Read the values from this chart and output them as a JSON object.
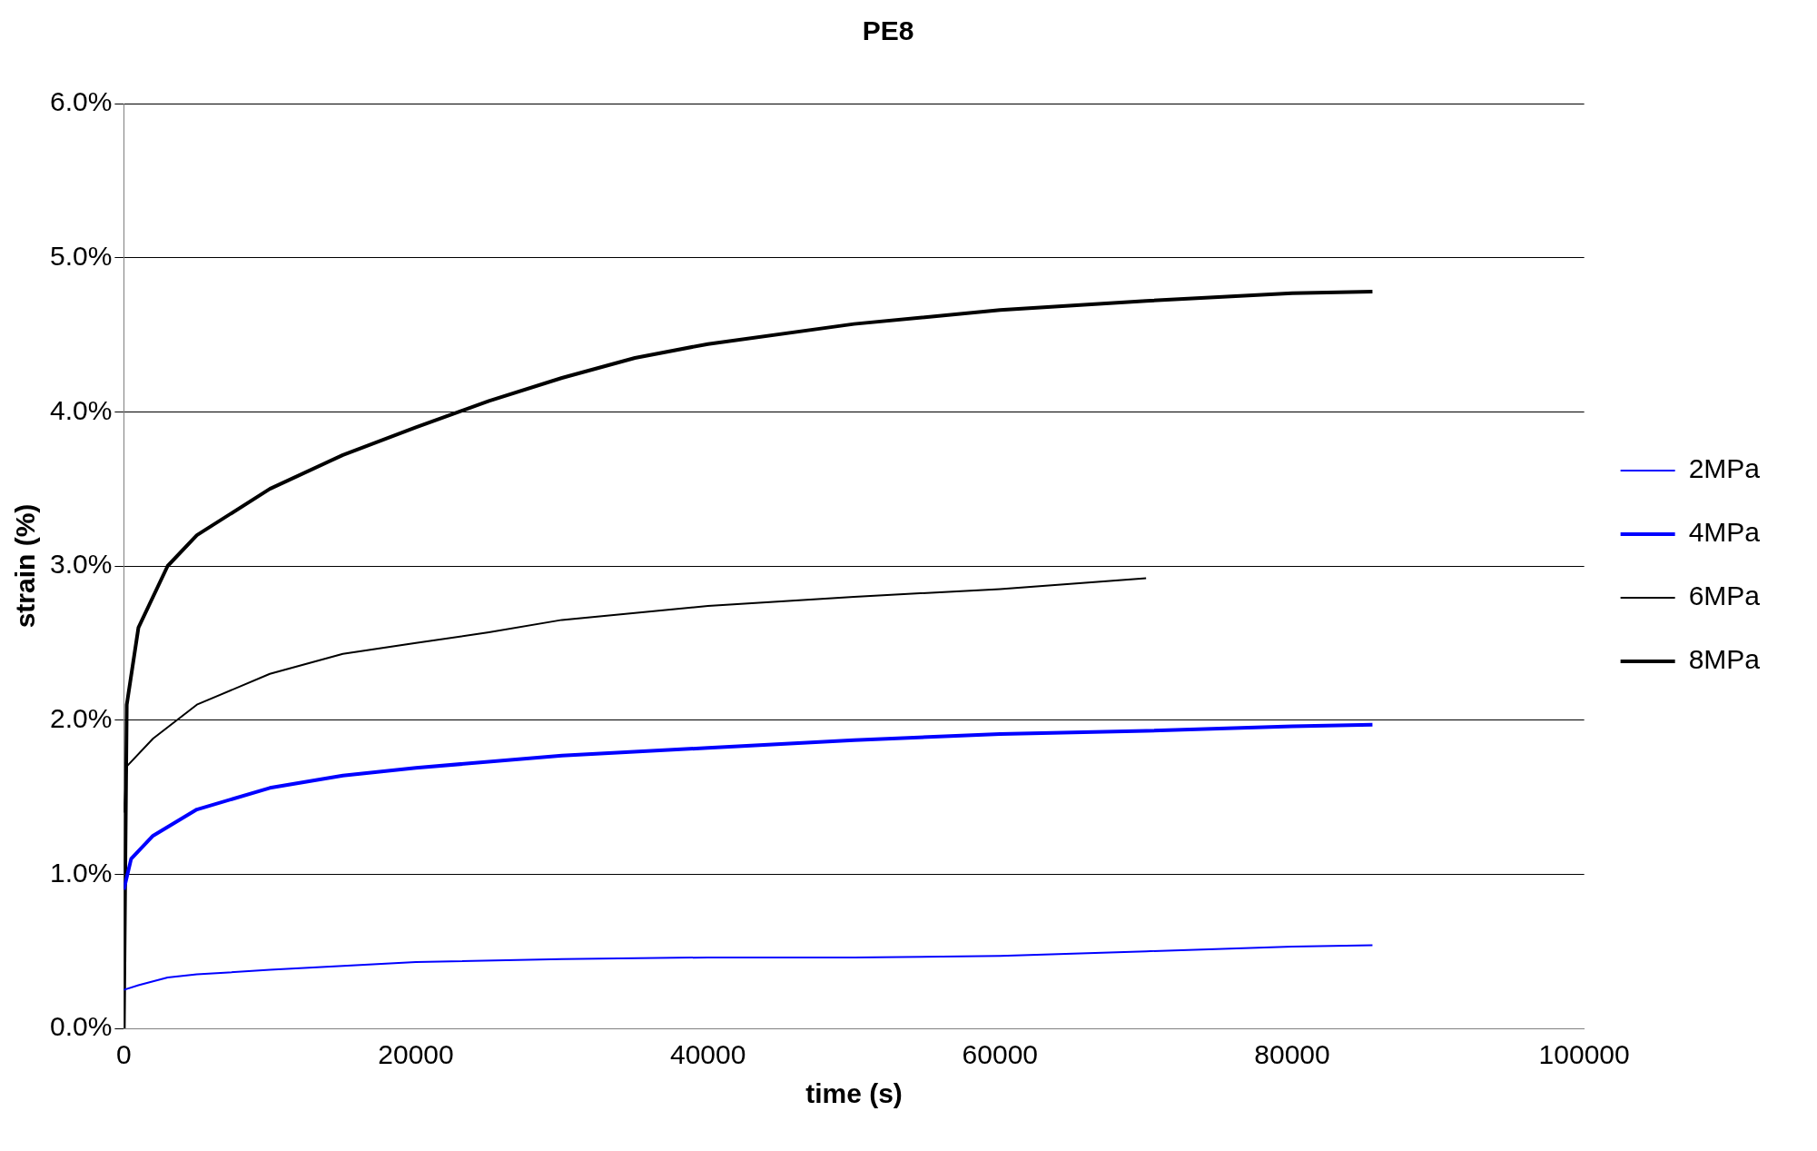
{
  "chart_data": {
    "type": "line",
    "title": "PE8",
    "xlabel": "time (s)",
    "ylabel": "strain (%)",
    "xlim": [
      0,
      100000
    ],
    "xticks": [
      0,
      20000,
      40000,
      60000,
      80000,
      100000
    ],
    "ylim": [
      0,
      6
    ],
    "yticks": [
      {
        "value": 0,
        "label": "0.0%"
      },
      {
        "value": 1,
        "label": "1.0%"
      },
      {
        "value": 2,
        "label": "2.0%"
      },
      {
        "value": 3,
        "label": "3.0%"
      },
      {
        "value": 4,
        "label": "4.0%"
      },
      {
        "value": 5,
        "label": "5.0%"
      },
      {
        "value": 6,
        "label": "6.0%"
      }
    ],
    "grid": "y",
    "legend": "right",
    "marker": "none",
    "line_style": "solid",
    "series": [
      {
        "name": "2MPa",
        "color": "#0000ff",
        "x": [
          0,
          1000,
          3000,
          5000,
          10000,
          20000,
          30000,
          40000,
          50000,
          60000,
          70000,
          80000,
          85500
        ],
        "values": [
          0.25,
          0.28,
          0.33,
          0.35,
          0.38,
          0.43,
          0.45,
          0.46,
          0.46,
          0.47,
          0.5,
          0.53,
          0.54
        ]
      },
      {
        "name": "4MPa",
        "color": "#0000ff",
        "x": [
          0,
          500,
          2000,
          5000,
          10000,
          15000,
          20000,
          30000,
          40000,
          50000,
          60000,
          70000,
          80000,
          85500
        ],
        "values": [
          0.9,
          1.1,
          1.25,
          1.42,
          1.56,
          1.64,
          1.69,
          1.77,
          1.82,
          1.87,
          1.91,
          1.93,
          1.96,
          1.97
        ]
      },
      {
        "name": "6MPa",
        "color": "#000000",
        "x": [
          0,
          200,
          2000,
          5000,
          10000,
          15000,
          20000,
          25000,
          30000,
          40000,
          50000,
          60000,
          70000
        ],
        "values": [
          1.4,
          1.7,
          1.88,
          2.1,
          2.3,
          2.43,
          2.5,
          2.57,
          2.65,
          2.74,
          2.8,
          2.85,
          2.92
        ]
      },
      {
        "name": "8MPa",
        "color": "#000000",
        "x": [
          0,
          200,
          1000,
          3000,
          5000,
          10000,
          15000,
          20000,
          25000,
          30000,
          35000,
          40000,
          50000,
          60000,
          70000,
          80000,
          85500
        ],
        "values": [
          0,
          2.1,
          2.6,
          3.0,
          3.2,
          3.5,
          3.72,
          3.9,
          4.07,
          4.22,
          4.35,
          4.44,
          4.57,
          4.66,
          4.72,
          4.77,
          4.78
        ]
      }
    ]
  }
}
